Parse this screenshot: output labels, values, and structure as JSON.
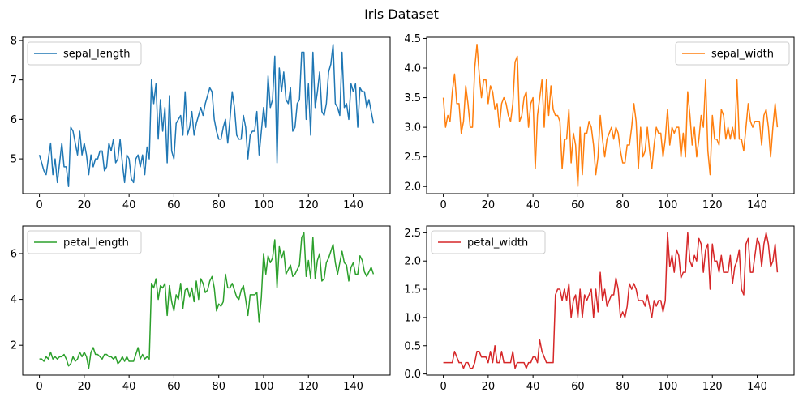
{
  "figure": {
    "title": "Iris Dataset"
  },
  "chart_data": [
    {
      "type": "line",
      "series": [
        {
          "name": "sepal_length",
          "color": "#1f77b4",
          "x_start": 0,
          "values": [
            5.1,
            4.9,
            4.7,
            4.6,
            5.0,
            5.4,
            4.6,
            5.0,
            4.4,
            4.9,
            5.4,
            4.8,
            4.8,
            4.3,
            5.8,
            5.7,
            5.4,
            5.1,
            5.7,
            5.1,
            5.4,
            5.1,
            4.6,
            5.1,
            4.8,
            5.0,
            5.0,
            5.2,
            5.2,
            4.7,
            4.8,
            5.4,
            5.2,
            5.5,
            4.9,
            5.0,
            5.5,
            4.9,
            4.4,
            5.1,
            5.0,
            4.5,
            4.4,
            5.0,
            5.1,
            4.8,
            5.1,
            4.6,
            5.3,
            5.0,
            7.0,
            6.4,
            6.9,
            5.5,
            6.5,
            5.7,
            6.3,
            4.9,
            6.6,
            5.2,
            5.0,
            5.9,
            6.0,
            6.1,
            5.6,
            6.7,
            5.6,
            5.8,
            6.2,
            5.6,
            5.9,
            6.1,
            6.3,
            6.1,
            6.4,
            6.6,
            6.8,
            6.7,
            6.0,
            5.7,
            5.5,
            5.5,
            5.8,
            6.0,
            5.4,
            6.0,
            6.7,
            6.3,
            5.6,
            5.5,
            5.5,
            6.1,
            5.8,
            5.0,
            5.6,
            5.7,
            5.7,
            6.2,
            5.1,
            5.7,
            6.3,
            5.8,
            7.1,
            6.3,
            6.5,
            7.6,
            4.9,
            7.3,
            6.7,
            7.2,
            6.5,
            6.4,
            6.8,
            5.7,
            5.8,
            6.4,
            6.5,
            7.7,
            7.7,
            6.0,
            6.9,
            5.6,
            7.7,
            6.3,
            6.7,
            7.2,
            6.2,
            6.1,
            6.4,
            7.2,
            7.4,
            7.9,
            6.4,
            6.3,
            6.1,
            7.7,
            6.3,
            6.4,
            6.0,
            6.9,
            6.7,
            6.9,
            5.8,
            6.8,
            6.7,
            6.7,
            6.3,
            6.5,
            6.2,
            5.9
          ]
        }
      ],
      "xlim": [
        -7.45,
        156.45
      ],
      "ylim": [
        4.12,
        8.08
      ],
      "xticks": [
        0,
        20,
        40,
        60,
        80,
        100,
        120,
        140
      ],
      "yticks": [
        5,
        6,
        7,
        8
      ],
      "ytick_labels": [
        "5",
        "6",
        "7",
        "8"
      ],
      "legend": "upper-left"
    },
    {
      "type": "line",
      "series": [
        {
          "name": "sepal_width",
          "color": "#ff7f0e",
          "x_start": 0,
          "values": [
            3.5,
            3.0,
            3.2,
            3.1,
            3.6,
            3.9,
            3.4,
            3.4,
            2.9,
            3.1,
            3.7,
            3.4,
            3.0,
            3.0,
            4.0,
            4.4,
            3.9,
            3.5,
            3.8,
            3.8,
            3.4,
            3.7,
            3.6,
            3.3,
            3.4,
            3.0,
            3.4,
            3.5,
            3.4,
            3.2,
            3.1,
            3.4,
            4.1,
            4.2,
            3.1,
            3.2,
            3.5,
            3.6,
            3.0,
            3.4,
            3.5,
            2.3,
            3.2,
            3.5,
            3.8,
            3.0,
            3.8,
            3.2,
            3.7,
            3.3,
            3.2,
            3.2,
            3.1,
            2.3,
            2.8,
            2.8,
            3.3,
            2.4,
            2.9,
            2.7,
            2.0,
            3.0,
            2.2,
            2.9,
            2.9,
            3.1,
            3.0,
            2.7,
            2.2,
            2.5,
            3.2,
            2.8,
            2.5,
            2.8,
            2.9,
            3.0,
            2.8,
            3.0,
            2.9,
            2.6,
            2.4,
            2.4,
            2.7,
            2.7,
            3.0,
            3.4,
            3.1,
            2.3,
            3.0,
            2.5,
            2.6,
            3.0,
            2.6,
            2.3,
            2.7,
            3.0,
            2.9,
            2.9,
            2.5,
            2.8,
            3.3,
            2.7,
            3.0,
            2.9,
            3.0,
            3.0,
            2.5,
            2.9,
            2.5,
            3.6,
            3.2,
            2.7,
            3.0,
            2.5,
            2.8,
            3.2,
            3.0,
            3.8,
            2.6,
            2.2,
            3.2,
            2.8,
            2.8,
            2.7,
            3.3,
            3.2,
            2.8,
            3.0,
            2.8,
            3.0,
            2.8,
            3.8,
            2.8,
            2.8,
            2.6,
            3.0,
            3.4,
            3.1,
            3.0,
            3.1,
            3.1,
            3.1,
            2.7,
            3.2,
            3.3,
            3.0,
            2.5,
            3.0,
            3.4,
            3.0
          ]
        }
      ],
      "xlim": [
        -7.45,
        156.45
      ],
      "ylim": [
        1.88,
        4.52
      ],
      "xticks": [
        0,
        20,
        40,
        60,
        80,
        100,
        120,
        140
      ],
      "yticks": [
        2.0,
        2.5,
        3.0,
        3.5,
        4.0,
        4.5
      ],
      "ytick_labels": [
        "2.0",
        "2.5",
        "3.0",
        "3.5",
        "4.0",
        "4.5"
      ],
      "legend": "upper-right"
    },
    {
      "type": "line",
      "series": [
        {
          "name": "petal_length",
          "color": "#2ca02c",
          "x_start": 0,
          "values": [
            1.4,
            1.4,
            1.3,
            1.5,
            1.4,
            1.7,
            1.4,
            1.5,
            1.4,
            1.5,
            1.5,
            1.6,
            1.4,
            1.1,
            1.2,
            1.5,
            1.3,
            1.4,
            1.7,
            1.5,
            1.7,
            1.5,
            1.0,
            1.7,
            1.9,
            1.6,
            1.6,
            1.5,
            1.4,
            1.6,
            1.6,
            1.5,
            1.5,
            1.4,
            1.5,
            1.2,
            1.3,
            1.5,
            1.3,
            1.5,
            1.3,
            1.3,
            1.3,
            1.6,
            1.9,
            1.4,
            1.6,
            1.4,
            1.5,
            1.4,
            4.7,
            4.5,
            4.9,
            4.0,
            4.6,
            4.5,
            4.7,
            3.3,
            4.6,
            3.9,
            3.5,
            4.2,
            4.0,
            4.7,
            3.6,
            4.4,
            4.5,
            4.1,
            4.5,
            3.9,
            4.8,
            4.0,
            4.9,
            4.7,
            4.3,
            4.4,
            4.8,
            5.0,
            4.5,
            3.5,
            3.8,
            3.7,
            3.9,
            5.1,
            4.5,
            4.5,
            4.7,
            4.4,
            4.1,
            4.0,
            4.4,
            4.6,
            4.0,
            3.3,
            4.2,
            4.2,
            4.2,
            4.3,
            3.0,
            4.1,
            6.0,
            5.1,
            5.9,
            5.6,
            5.8,
            6.6,
            4.5,
            6.3,
            5.8,
            6.1,
            5.1,
            5.3,
            5.5,
            5.0,
            5.1,
            5.3,
            5.5,
            6.7,
            6.9,
            5.0,
            5.7,
            4.9,
            6.7,
            4.9,
            5.7,
            6.0,
            4.8,
            4.9,
            5.6,
            5.8,
            6.1,
            6.4,
            5.6,
            5.1,
            5.6,
            6.1,
            5.6,
            5.5,
            4.8,
            5.4,
            5.6,
            5.1,
            5.1,
            5.9,
            5.7,
            5.2,
            5.0,
            5.2,
            5.4,
            5.1
          ]
        }
      ],
      "xlim": [
        -7.45,
        156.45
      ],
      "ylim": [
        0.7,
        7.2
      ],
      "xticks": [
        0,
        20,
        40,
        60,
        80,
        100,
        120,
        140
      ],
      "yticks": [
        2,
        4,
        6
      ],
      "ytick_labels": [
        "2",
        "4",
        "6"
      ],
      "legend": "upper-left"
    },
    {
      "type": "line",
      "series": [
        {
          "name": "petal_width",
          "color": "#d62728",
          "x_start": 0,
          "values": [
            0.2,
            0.2,
            0.2,
            0.2,
            0.2,
            0.4,
            0.3,
            0.2,
            0.2,
            0.1,
            0.2,
            0.2,
            0.1,
            0.1,
            0.2,
            0.4,
            0.4,
            0.3,
            0.3,
            0.3,
            0.2,
            0.4,
            0.2,
            0.5,
            0.2,
            0.2,
            0.4,
            0.2,
            0.2,
            0.2,
            0.2,
            0.4,
            0.1,
            0.2,
            0.2,
            0.2,
            0.2,
            0.1,
            0.2,
            0.2,
            0.3,
            0.3,
            0.2,
            0.6,
            0.4,
            0.3,
            0.2,
            0.2,
            0.2,
            0.2,
            1.4,
            1.5,
            1.5,
            1.3,
            1.5,
            1.3,
            1.6,
            1.0,
            1.3,
            1.4,
            1.0,
            1.5,
            1.0,
            1.4,
            1.3,
            1.4,
            1.5,
            1.0,
            1.5,
            1.1,
            1.8,
            1.3,
            1.5,
            1.2,
            1.3,
            1.4,
            1.4,
            1.7,
            1.5,
            1.0,
            1.1,
            1.0,
            1.2,
            1.6,
            1.5,
            1.6,
            1.5,
            1.3,
            1.3,
            1.3,
            1.2,
            1.4,
            1.2,
            1.0,
            1.3,
            1.2,
            1.3,
            1.3,
            1.1,
            1.3,
            2.5,
            1.9,
            2.1,
            1.8,
            2.2,
            2.1,
            1.7,
            1.8,
            1.8,
            2.5,
            2.0,
            1.9,
            2.1,
            2.0,
            2.4,
            2.3,
            1.8,
            2.2,
            2.3,
            1.5,
            2.3,
            2.0,
            2.0,
            1.8,
            2.1,
            1.8,
            1.8,
            1.8,
            2.1,
            1.6,
            1.9,
            2.0,
            2.2,
            1.5,
            1.4,
            2.3,
            2.4,
            1.8,
            1.8,
            2.1,
            2.4,
            2.3,
            1.9,
            2.3,
            2.5,
            2.3,
            1.9,
            2.0,
            2.3,
            1.8
          ]
        }
      ],
      "xlim": [
        -7.45,
        156.45
      ],
      "ylim": [
        -0.02,
        2.62
      ],
      "xticks": [
        0,
        20,
        40,
        60,
        80,
        100,
        120,
        140
      ],
      "yticks": [
        0.0,
        0.5,
        1.0,
        1.5,
        2.0,
        2.5
      ],
      "ytick_labels": [
        "0.0",
        "0.5",
        "1.0",
        "1.5",
        "2.0",
        "2.5"
      ],
      "legend": "upper-left"
    }
  ]
}
